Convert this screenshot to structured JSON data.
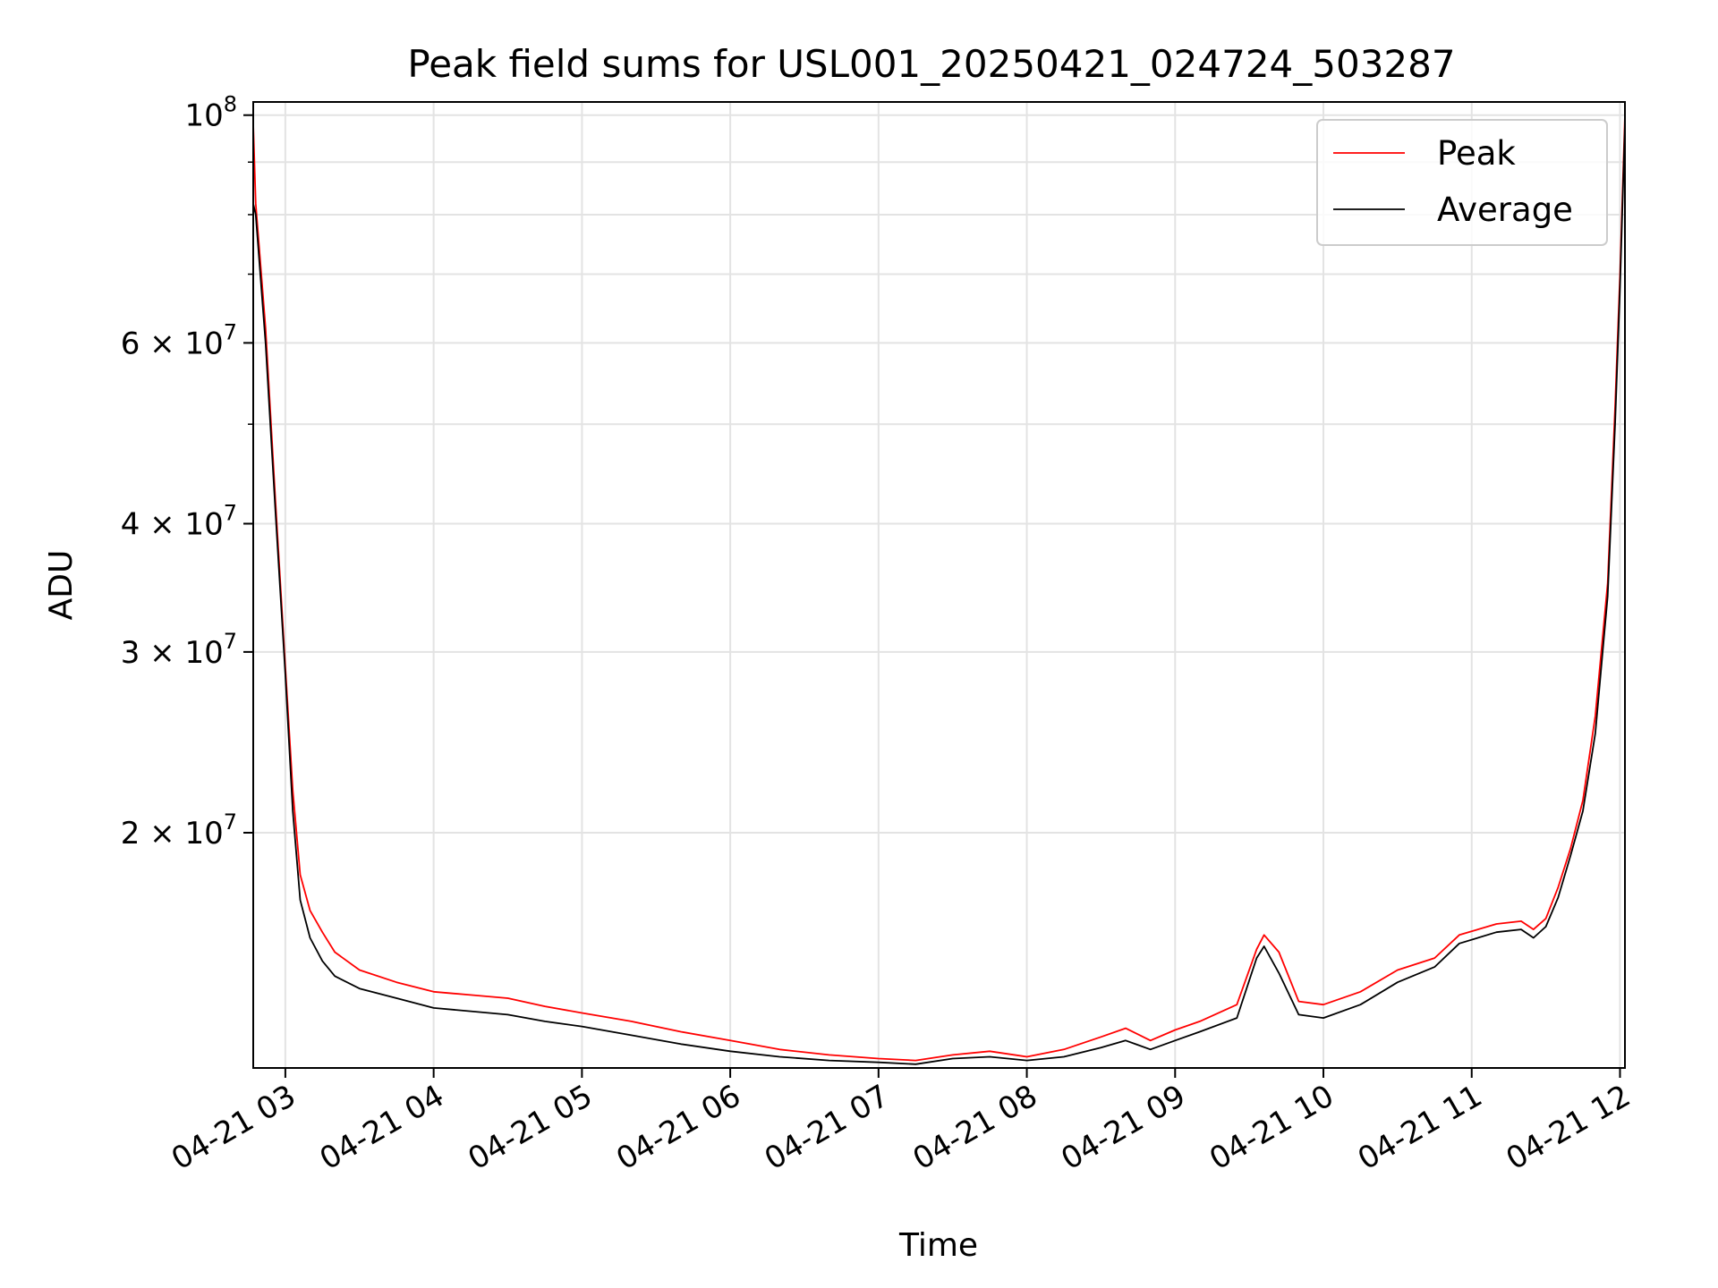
{
  "chart_data": {
    "type": "line",
    "title": "Peak field sums for USL001_20250421_024724_503287",
    "xlabel": "Time",
    "ylabel": "ADU",
    "yscale": "log",
    "grid": true,
    "legend_position": "top-right",
    "xlim": [
      "2025-04-21 02:47",
      "2025-04-21 12:02"
    ],
    "ylim": [
      11800000,
      103000000
    ],
    "x_ticks": [
      {
        "t": "2025-04-21 03:00",
        "label": "04-21 03"
      },
      {
        "t": "2025-04-21 04:00",
        "label": "04-21 04"
      },
      {
        "t": "2025-04-21 05:00",
        "label": "04-21 05"
      },
      {
        "t": "2025-04-21 06:00",
        "label": "04-21 06"
      },
      {
        "t": "2025-04-21 07:00",
        "label": "04-21 07"
      },
      {
        "t": "2025-04-21 08:00",
        "label": "04-21 08"
      },
      {
        "t": "2025-04-21 09:00",
        "label": "04-21 09"
      },
      {
        "t": "2025-04-21 10:00",
        "label": "04-21 10"
      },
      {
        "t": "2025-04-21 11:00",
        "label": "04-21 11"
      },
      {
        "t": "2025-04-21 12:00",
        "label": "04-21 12"
      }
    ],
    "y_major_ticks": [
      {
        "v": 20000000,
        "base": "2 × 10",
        "exp": "7"
      },
      {
        "v": 30000000,
        "base": "3 × 10",
        "exp": "7"
      },
      {
        "v": 40000000,
        "base": "4 × 10",
        "exp": "7"
      },
      {
        "v": 60000000,
        "base": "6 × 10",
        "exp": "7"
      },
      {
        "v": 100000000,
        "base": "10",
        "exp": "8"
      }
    ],
    "y_minor_ticks": [
      50000000,
      70000000,
      80000000,
      90000000
    ],
    "series": [
      {
        "name": "Peak",
        "color": "#ff0000",
        "x": [
          "2025-04-21 02:47",
          "2025-04-21 02:48",
          "2025-04-21 02:52",
          "2025-04-21 02:56",
          "2025-04-21 03:00",
          "2025-04-21 03:03",
          "2025-04-21 03:06",
          "2025-04-21 03:10",
          "2025-04-21 03:15",
          "2025-04-21 03:20",
          "2025-04-21 03:30",
          "2025-04-21 03:45",
          "2025-04-21 04:00",
          "2025-04-21 04:15",
          "2025-04-21 04:30",
          "2025-04-21 04:45",
          "2025-04-21 05:00",
          "2025-04-21 05:20",
          "2025-04-21 05:40",
          "2025-04-21 06:00",
          "2025-04-21 06:20",
          "2025-04-21 06:40",
          "2025-04-21 07:00",
          "2025-04-21 07:15",
          "2025-04-21 07:30",
          "2025-04-21 07:45",
          "2025-04-21 08:00",
          "2025-04-21 08:15",
          "2025-04-21 08:30",
          "2025-04-21 08:40",
          "2025-04-21 08:50",
          "2025-04-21 09:00",
          "2025-04-21 09:10",
          "2025-04-21 09:25",
          "2025-04-21 09:33",
          "2025-04-21 09:36",
          "2025-04-21 09:42",
          "2025-04-21 09:50",
          "2025-04-21 10:00",
          "2025-04-21 10:15",
          "2025-04-21 10:30",
          "2025-04-21 10:45",
          "2025-04-21 10:55",
          "2025-04-21 11:10",
          "2025-04-21 11:20",
          "2025-04-21 11:25",
          "2025-04-21 11:30",
          "2025-04-21 11:35",
          "2025-04-21 11:40",
          "2025-04-21 11:45",
          "2025-04-21 11:50",
          "2025-04-21 11:55",
          "2025-04-21 11:58",
          "2025-04-21 12:00",
          "2025-04-21 12:02"
        ],
        "y": [
          98000000,
          82000000,
          62000000,
          42000000,
          29000000,
          22000000,
          18200000,
          16800000,
          16000000,
          15300000,
          14700000,
          14300000,
          14000000,
          13900000,
          13800000,
          13550000,
          13350000,
          13100000,
          12800000,
          12550000,
          12300000,
          12150000,
          12050000,
          12000000,
          12150000,
          12250000,
          12100000,
          12300000,
          12650000,
          12900000,
          12550000,
          12850000,
          13100000,
          13600000,
          15400000,
          15900000,
          15300000,
          13700000,
          13600000,
          14000000,
          14700000,
          15100000,
          15900000,
          16300000,
          16400000,
          16100000,
          16500000,
          17700000,
          19300000,
          21500000,
          26000000,
          35000000,
          52000000,
          70000000,
          100000000
        ]
      },
      {
        "name": "Average",
        "color": "#000000",
        "x": [
          "2025-04-21 02:47",
          "2025-04-21 02:48",
          "2025-04-21 02:52",
          "2025-04-21 02:56",
          "2025-04-21 03:00",
          "2025-04-21 03:03",
          "2025-04-21 03:06",
          "2025-04-21 03:10",
          "2025-04-21 03:15",
          "2025-04-21 03:20",
          "2025-04-21 03:30",
          "2025-04-21 03:45",
          "2025-04-21 04:00",
          "2025-04-21 04:15",
          "2025-04-21 04:30",
          "2025-04-21 04:45",
          "2025-04-21 05:00",
          "2025-04-21 05:20",
          "2025-04-21 05:40",
          "2025-04-21 06:00",
          "2025-04-21 06:20",
          "2025-04-21 06:40",
          "2025-04-21 07:00",
          "2025-04-21 07:15",
          "2025-04-21 07:30",
          "2025-04-21 07:45",
          "2025-04-21 08:00",
          "2025-04-21 08:15",
          "2025-04-21 08:30",
          "2025-04-21 08:40",
          "2025-04-21 08:50",
          "2025-04-21 09:00",
          "2025-04-21 09:10",
          "2025-04-21 09:25",
          "2025-04-21 09:33",
          "2025-04-21 09:36",
          "2025-04-21 09:42",
          "2025-04-21 09:50",
          "2025-04-21 10:00",
          "2025-04-21 10:15",
          "2025-04-21 10:30",
          "2025-04-21 10:45",
          "2025-04-21 10:55",
          "2025-04-21 11:10",
          "2025-04-21 11:20",
          "2025-04-21 11:25",
          "2025-04-21 11:30",
          "2025-04-21 11:35",
          "2025-04-21 11:40",
          "2025-04-21 11:45",
          "2025-04-21 11:50",
          "2025-04-21 11:55",
          "2025-04-21 11:58",
          "2025-04-21 12:00",
          "2025-04-21 12:02"
        ],
        "y": [
          82000000,
          80000000,
          60000000,
          41000000,
          28500000,
          21000000,
          17200000,
          15800000,
          15000000,
          14500000,
          14100000,
          13800000,
          13500000,
          13400000,
          13300000,
          13100000,
          12950000,
          12700000,
          12450000,
          12250000,
          12100000,
          12000000,
          11950000,
          11900000,
          12050000,
          12100000,
          12000000,
          12100000,
          12350000,
          12550000,
          12300000,
          12550000,
          12800000,
          13200000,
          15100000,
          15500000,
          14600000,
          13300000,
          13200000,
          13600000,
          14300000,
          14800000,
          15600000,
          16000000,
          16100000,
          15800000,
          16200000,
          17300000,
          19000000,
          21000000,
          25000000,
          34000000,
          50000000,
          68000000,
          98000000
        ]
      }
    ]
  }
}
